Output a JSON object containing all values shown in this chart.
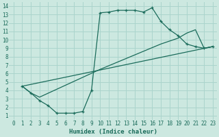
{
  "xlabel": "Humidex (Indice chaleur)",
  "bg_color": "#cce8e0",
  "grid_color": "#aad4cc",
  "line_color": "#1a6b5a",
  "xlim": [
    -0.5,
    23.5
  ],
  "ylim": [
    0.5,
    14.5
  ],
  "xticks": [
    0,
    1,
    2,
    3,
    4,
    5,
    6,
    7,
    8,
    9,
    10,
    11,
    12,
    13,
    14,
    15,
    16,
    17,
    18,
    19,
    20,
    21,
    22,
    23
  ],
  "yticks": [
    1,
    2,
    3,
    4,
    5,
    6,
    7,
    8,
    9,
    10,
    11,
    12,
    13,
    14
  ],
  "curve1_x": [
    1,
    2,
    3,
    4,
    5,
    6,
    7,
    8,
    9,
    10,
    11,
    12,
    13,
    14,
    15,
    16,
    17,
    18,
    19,
    20,
    21,
    22,
    23
  ],
  "curve1_y": [
    4.5,
    3.7,
    2.8,
    2.2,
    1.3,
    1.3,
    1.3,
    1.5,
    4.0,
    13.2,
    13.3,
    13.5,
    13.5,
    13.5,
    13.3,
    13.8,
    12.2,
    11.2,
    10.5,
    9.5,
    9.2,
    9.0,
    9.2
  ],
  "curve2_x": [
    1,
    2,
    3,
    10,
    17,
    19,
    20,
    21,
    22,
    23
  ],
  "curve2_y": [
    4.5,
    3.7,
    3.2,
    6.5,
    9.5,
    10.2,
    10.8,
    11.2,
    9.0,
    9.2
  ],
  "curve3_x": [
    1,
    23
  ],
  "curve3_y": [
    4.5,
    9.2
  ]
}
